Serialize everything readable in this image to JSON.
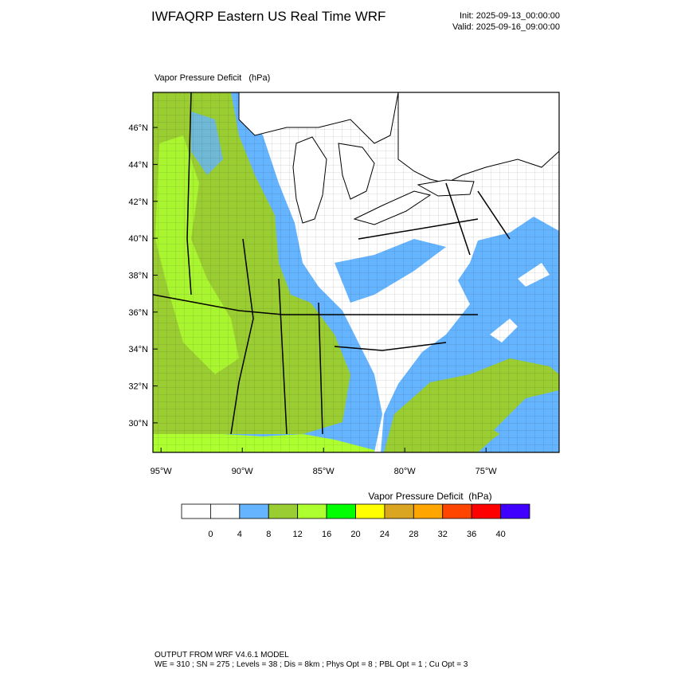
{
  "header": {
    "title": "IWFAQRP Eastern US Real Time WRF",
    "init": "Init: 2025-09-13_00:00:00",
    "valid": "Valid: 2025-09-16_09:00:00"
  },
  "map": {
    "label": "Vapor Pressure Deficit   (hPa)",
    "ylim": [
      28.4,
      47.9
    ],
    "yticks": [
      {
        "value": 30,
        "label": "30°N"
      },
      {
        "value": 32,
        "label": "32°N"
      },
      {
        "value": 34,
        "label": "34°N"
      },
      {
        "value": 36,
        "label": "36°N"
      },
      {
        "value": 38,
        "label": "38°N"
      },
      {
        "value": 40,
        "label": "40°N"
      },
      {
        "value": 42,
        "label": "42°N"
      },
      {
        "value": 44,
        "label": "44°N"
      },
      {
        "value": 46,
        "label": "46°N"
      }
    ],
    "xlim": [
      -95.5,
      -70.5
    ],
    "xticks": [
      {
        "value": -95,
        "label": "95°W"
      },
      {
        "value": -90,
        "label": "90°W"
      },
      {
        "value": -85,
        "label": "85°W"
      },
      {
        "value": -80,
        "label": "80°W"
      },
      {
        "value": -75,
        "label": "75°W"
      }
    ]
  },
  "colorbar": {
    "title": "Vapor Pressure Deficit  (hPa)",
    "levels": [
      0,
      4,
      8,
      12,
      16,
      20,
      24,
      28,
      32,
      36,
      40
    ],
    "colors": [
      "#ffffff",
      "#ffffff",
      "#64b4ff",
      "#9acd32",
      "#adff2f",
      "#00ff00",
      "#ffff00",
      "#daa520",
      "#ffa500",
      "#ff4500",
      "#ff0000",
      "#4000ff"
    ]
  },
  "footer": {
    "line1": "OUTPUT FROM WRF V4.6.1 MODEL",
    "line2": "WE = 310 ; SN = 275 ; Levels = 38 ; Dis = 8km ; Phys Opt = 8 ; PBL Opt = 1 ; Cu Opt = 3"
  }
}
